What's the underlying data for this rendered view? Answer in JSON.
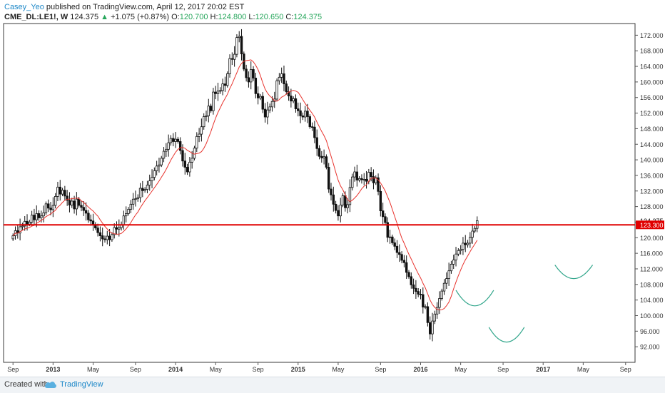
{
  "header": {
    "author": "Casey_Yeo",
    "published_text": " published on TradingView.com, April 12, 2017 20:02 EST",
    "symbol": "CME_DL:LE1!, W",
    "last": "124.375",
    "change": "+1.075 (+0.87%)",
    "o_label": "O:",
    "o_value": "120.700",
    "h_label": "H:",
    "h_value": "124.800",
    "l_label": "L:",
    "l_value": "120.650",
    "c_label": "C:",
    "c_value": "124.375"
  },
  "footer": {
    "created_with": "Created with",
    "brand": "TradingView"
  },
  "colors": {
    "candle": "#111111",
    "ma": "#e8332d",
    "hline": "#e00000",
    "pattern": "#2fa58a",
    "price_tag_bg": "#e00000",
    "last_tag_bg": "#ffffff"
  },
  "chart_data": {
    "type": "candlestick",
    "y_range": [
      88,
      175
    ],
    "y_ticks": [
      "172.000",
      "168.000",
      "164.000",
      "160.000",
      "156.000",
      "152.000",
      "148.000",
      "144.000",
      "140.000",
      "136.000",
      "132.000",
      "128.000",
      "124.000",
      "120.000",
      "116.000",
      "112.000",
      "108.000",
      "104.000",
      "100.000",
      "96.000",
      "92.000"
    ],
    "y_tick_values": [
      172,
      168,
      164,
      160,
      156,
      152,
      148,
      144,
      140,
      136,
      132,
      128,
      124,
      120,
      116,
      112,
      108,
      104,
      100,
      96,
      92
    ],
    "x_labels": [
      {
        "label": "Sep",
        "week": 0
      },
      {
        "label": "2013",
        "week": 17
      },
      {
        "label": "May",
        "week": 34
      },
      {
        "label": "Sep",
        "week": 52
      },
      {
        "label": "2014",
        "week": 69
      },
      {
        "label": "May",
        "week": 86
      },
      {
        "label": "Sep",
        "week": 104
      },
      {
        "label": "2015",
        "week": 121
      },
      {
        "label": "May",
        "week": 138
      },
      {
        "label": "Sep",
        "week": 156
      },
      {
        "label": "2016",
        "week": 173
      },
      {
        "label": "May",
        "week": 190
      },
      {
        "label": "Sep",
        "week": 208
      },
      {
        "label": "2017",
        "week": 225
      },
      {
        "label": "May",
        "week": 242
      },
      {
        "label": "Sep",
        "week": 260
      }
    ],
    "week_range": [
      -4,
      264
    ],
    "horizontal_line": 123.3,
    "horizontal_line_label": "123.300",
    "last_price_label": "124.375",
    "last_price": 124.375,
    "ma_period": 10,
    "closes": [
      120.5,
      121.8,
      121.2,
      122.8,
      123.0,
      124.2,
      123.5,
      124.0,
      125.8,
      124.6,
      126.2,
      125.1,
      125.6,
      126.4,
      128.7,
      127.6,
      127.2,
      128.3,
      130.6,
      133.0,
      131.2,
      132.2,
      130.7,
      129.6,
      128.4,
      129.4,
      127.4,
      129.9,
      128.3,
      127.8,
      127.0,
      126.3,
      124.6,
      124.3,
      123.4,
      122.5,
      121.3,
      120.5,
      119.7,
      119.5,
      120.4,
      119.5,
      120.8,
      122.6,
      122.2,
      122.6,
      123.3,
      125.6,
      126.2,
      127.3,
      128.6,
      129.9,
      130.0,
      130.3,
      132.7,
      132.1,
      132.4,
      133.5,
      134.6,
      135.5,
      137.2,
      138.4,
      138.7,
      140.4,
      142.2,
      142.7,
      144.4,
      145.5,
      144.7,
      145.3,
      144.7,
      142.4,
      139.7,
      138.1,
      136.9,
      139.4,
      140.4,
      143.0,
      146.0,
      146.6,
      148.5,
      151.1,
      151.3,
      153.8,
      152.6,
      157.4,
      157.0,
      157.7,
      157.8,
      159.5,
      159.1,
      162.1,
      166.0,
      165.8,
      167.1,
      171.4,
      171.7,
      167.2,
      163.3,
      161.1,
      160.0,
      163.2,
      161.0,
      157.0,
      155.9,
      156.3,
      153.0,
      151.0,
      152.8,
      153.6,
      155.0,
      155.6,
      160.3,
      161.2,
      162.1,
      159.5,
      157.5,
      156.4,
      155.1,
      155.7,
      153.1,
      152.6,
      151.3,
      151.0,
      152.5,
      151.1,
      148.5,
      148.4,
      145.7,
      142.9,
      140.9,
      140.5,
      140.8,
      138.1,
      132.5,
      131.0,
      128.6,
      127.0,
      125.6,
      128.4,
      130.8,
      127.7,
      128.5,
      132.9,
      135.6,
      136.9,
      134.8,
      135.2,
      134.9,
      135.0,
      134.5,
      136.8,
      135.7,
      134.1,
      135.4,
      131.9,
      126.9,
      125.4,
      123.9,
      120.1,
      120.2,
      118.7,
      117.8,
      116.2,
      115.7,
      114.2,
      113.6,
      111.1,
      110.0,
      107.9,
      107.0,
      106.2,
      105.5,
      105.4,
      102.2,
      102.3,
      98.2,
      95.3,
      98.6,
      100.4,
      102.1,
      104.4,
      106.3,
      108.3,
      109.5,
      111.5,
      113.2,
      114.3,
      115.8,
      116.7,
      117.0,
      118.6,
      118.2,
      118.6,
      120.1,
      121.7,
      122.4,
      124.375
    ],
    "pattern_curves": [
      {
        "from_week": 188,
        "to_week": 204,
        "low": 102.5,
        "high": 106.5
      },
      {
        "from_week": 202,
        "to_week": 217,
        "low": 93.2,
        "high": 97.0
      },
      {
        "from_week": 230,
        "to_week": 246,
        "low": 109.5,
        "high": 113.0
      }
    ]
  }
}
